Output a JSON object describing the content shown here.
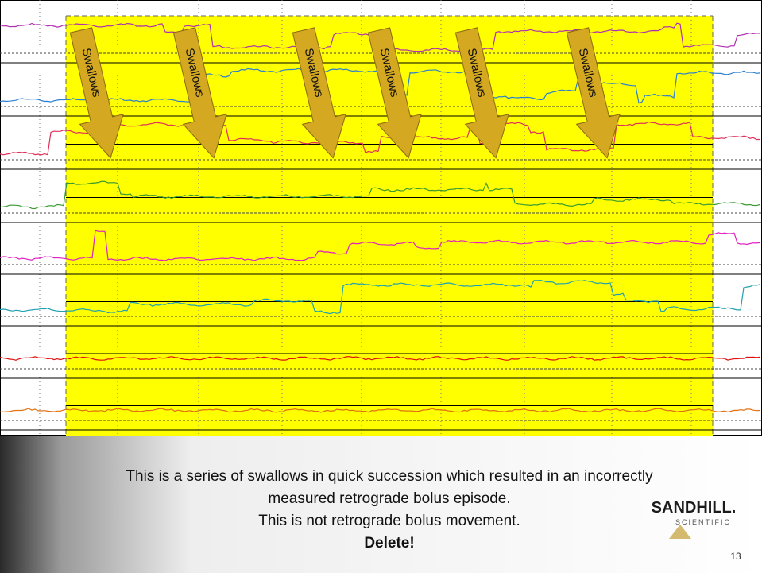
{
  "annotations": [
    "Swallows",
    "Swallows",
    "Swallows",
    "Swallows",
    "Swallows",
    "Swallows"
  ],
  "caption": {
    "lines": [
      "This is a series of swallows in quick succession which resulted in an incorrectly",
      "measured retrograde bolus episode.",
      "This is not retrograde bolus movement."
    ],
    "emphasis": "Delete!"
  },
  "logo": {
    "name": "SANDHILL.",
    "subtitle": "SCIENTIFIC"
  },
  "page_number": "13"
}
